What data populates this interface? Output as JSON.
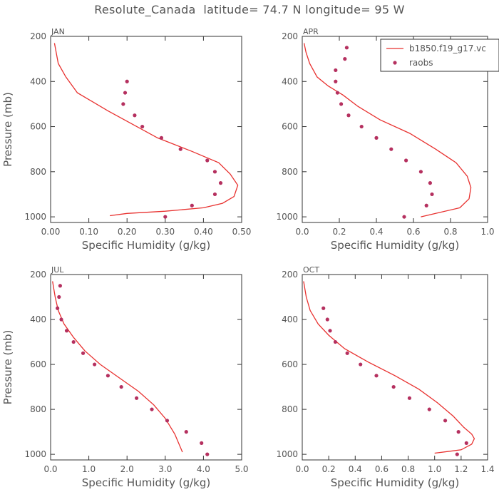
{
  "title": "Resolute_Canada  latitude= 74.7 N longitude= 95 W",
  "colors": {
    "model": "#e8312f",
    "obs": "#b5305f",
    "axis": "#555555",
    "text": "#555555"
  },
  "chart_data": [
    {
      "type": "line",
      "panel": "JAN",
      "xlabel": "Specific Humidity (g/kg)",
      "ylabel": "Pressure (mb)",
      "xlim": [
        0,
        0.5
      ],
      "ylim": [
        1025,
        200
      ],
      "xticks": [
        "0.00",
        "0.10",
        "0.20",
        "0.30",
        "0.40",
        "0.50"
      ],
      "yticks": [
        "200",
        "400",
        "600",
        "800",
        "1000"
      ],
      "series": [
        {
          "kind": "line",
          "x": [
            0.01,
            0.02,
            0.04,
            0.07,
            0.15,
            0.28,
            0.37,
            0.44,
            0.47,
            0.49,
            0.48,
            0.45,
            0.4,
            0.3,
            0.2,
            0.155
          ],
          "y": [
            230,
            320,
            380,
            450,
            530,
            650,
            710,
            760,
            810,
            860,
            910,
            940,
            960,
            975,
            985,
            995
          ]
        },
        {
          "kind": "points",
          "x": [
            0.2,
            0.195,
            0.19,
            0.22,
            0.24,
            0.29,
            0.34,
            0.41,
            0.43,
            0.445,
            0.43,
            0.37,
            0.3
          ],
          "y": [
            400,
            450,
            500,
            550,
            600,
            650,
            700,
            750,
            800,
            850,
            900,
            950,
            1000
          ]
        }
      ]
    },
    {
      "type": "line",
      "panel": "APR",
      "xlabel": "Specific Humidity (g/kg)",
      "ylabel": "",
      "xlim": [
        0,
        1.0
      ],
      "ylim": [
        1025,
        200
      ],
      "xticks": [
        "0.0",
        "0.2",
        "0.4",
        "0.6",
        "0.8",
        "1.0"
      ],
      "yticks": [
        "200",
        "400",
        "600",
        "800",
        "1000"
      ],
      "legend": {
        "entries": [
          "b1850.f19_g17.vc",
          "raobs"
        ],
        "placement": "top-right"
      },
      "series": [
        {
          "name": "b1850.f19_g17.vc",
          "kind": "line",
          "x": [
            0.01,
            0.02,
            0.04,
            0.08,
            0.14,
            0.22,
            0.3,
            0.42,
            0.58,
            0.72,
            0.83,
            0.89,
            0.91,
            0.9,
            0.85,
            0.72,
            0.64
          ],
          "y": [
            230,
            270,
            320,
            380,
            420,
            460,
            510,
            570,
            630,
            700,
            760,
            820,
            870,
            920,
            960,
            985,
            1000
          ]
        },
        {
          "name": "raobs",
          "kind": "points",
          "x": [
            0.24,
            0.23,
            0.18,
            0.18,
            0.19,
            0.21,
            0.25,
            0.32,
            0.4,
            0.48,
            0.56,
            0.64,
            0.69,
            0.7,
            0.67,
            0.55
          ],
          "y": [
            250,
            300,
            350,
            400,
            450,
            500,
            550,
            600,
            650,
            700,
            750,
            800,
            850,
            900,
            950,
            1000
          ]
        }
      ]
    },
    {
      "type": "line",
      "panel": "JUL",
      "xlabel": "Specific Humidity (g/kg)",
      "ylabel": "Pressure (mb)",
      "xlim": [
        0,
        5.0
      ],
      "ylim": [
        1025,
        200
      ],
      "xticks": [
        "0.0",
        "1.0",
        "2.0",
        "3.0",
        "4.0",
        "5.0"
      ],
      "yticks": [
        "200",
        "400",
        "600",
        "800",
        "1000"
      ],
      "series": [
        {
          "kind": "line",
          "x": [
            0.05,
            0.12,
            0.2,
            0.35,
            0.6,
            0.9,
            1.3,
            1.8,
            2.3,
            2.7,
            3.0,
            3.25,
            3.45
          ],
          "y": [
            230,
            300,
            360,
            420,
            480,
            540,
            600,
            660,
            720,
            780,
            840,
            910,
            990
          ]
        },
        {
          "kind": "points",
          "x": [
            0.25,
            0.22,
            0.18,
            0.28,
            0.42,
            0.6,
            0.85,
            1.15,
            1.5,
            1.85,
            2.25,
            2.65,
            3.05,
            3.55,
            3.95,
            4.1
          ],
          "y": [
            250,
            300,
            350,
            400,
            450,
            500,
            550,
            600,
            650,
            700,
            750,
            800,
            850,
            900,
            950,
            1000
          ]
        }
      ]
    },
    {
      "type": "line",
      "panel": "OCT",
      "xlabel": "Specific Humidity (g/kg)",
      "ylabel": "",
      "xlim": [
        0,
        1.4
      ],
      "ylim": [
        1025,
        200
      ],
      "xticks": [
        "0.0",
        "0.2",
        "0.4",
        "0.6",
        "0.8",
        "1.0",
        "1.2",
        "1.4"
      ],
      "yticks": [
        "200",
        "400",
        "600",
        "800",
        "1000"
      ],
      "series": [
        {
          "kind": "line",
          "x": [
            0.01,
            0.03,
            0.06,
            0.12,
            0.2,
            0.32,
            0.5,
            0.7,
            0.88,
            1.02,
            1.14,
            1.22,
            1.28,
            1.3,
            1.28,
            1.2,
            1.0
          ],
          "y": [
            230,
            300,
            360,
            420,
            470,
            530,
            590,
            650,
            710,
            770,
            830,
            880,
            910,
            930,
            955,
            980,
            995
          ]
        },
        {
          "kind": "points",
          "x": [
            0.16,
            0.19,
            0.21,
            0.25,
            0.34,
            0.44,
            0.56,
            0.69,
            0.81,
            0.96,
            1.08,
            1.18,
            1.24,
            1.17
          ],
          "y": [
            350,
            400,
            450,
            500,
            550,
            600,
            650,
            700,
            750,
            800,
            850,
            900,
            950,
            1000
          ]
        }
      ]
    }
  ]
}
